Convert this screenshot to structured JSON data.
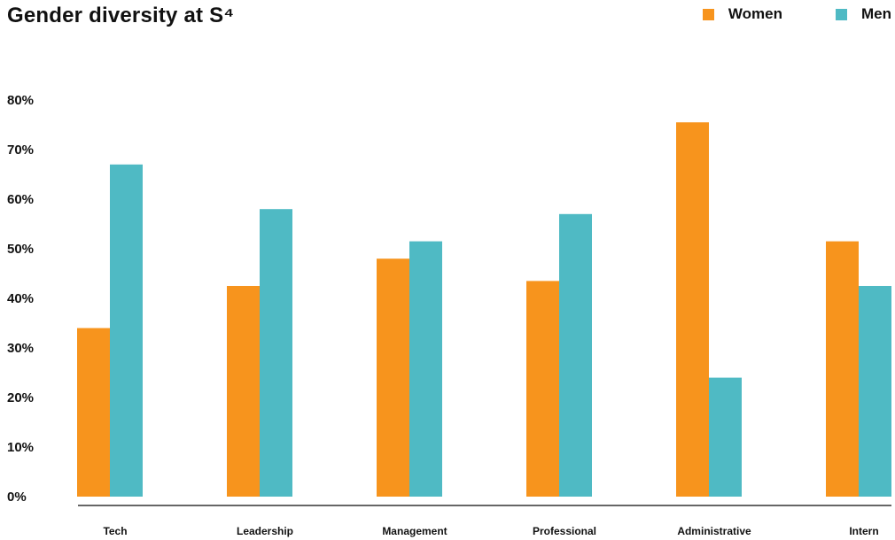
{
  "chart_data": {
    "type": "bar",
    "title": "Gender diversity at S⁴",
    "xlabel": "",
    "ylabel": "",
    "categories": [
      "Tech",
      "Leadership",
      "Management",
      "Professional",
      "Administrative",
      "Intern"
    ],
    "series": [
      {
        "name": "Women",
        "color": "#F7941D",
        "values": [
          34,
          42.5,
          48,
          43.5,
          75.5,
          51.5
        ]
      },
      {
        "name": "Men",
        "color": "#4FBAC4",
        "values": [
          67,
          58,
          51.5,
          57,
          24,
          42.5
        ]
      }
    ],
    "ylim": [
      0,
      80
    ],
    "yticks": [
      0,
      10,
      20,
      30,
      40,
      50,
      60,
      70,
      80
    ],
    "ytick_labels": [
      "0%",
      "10%",
      "20%",
      "30%",
      "40%",
      "50%",
      "60%",
      "70%",
      "80%"
    ],
    "grid": false,
    "legend_position": "top-right"
  }
}
